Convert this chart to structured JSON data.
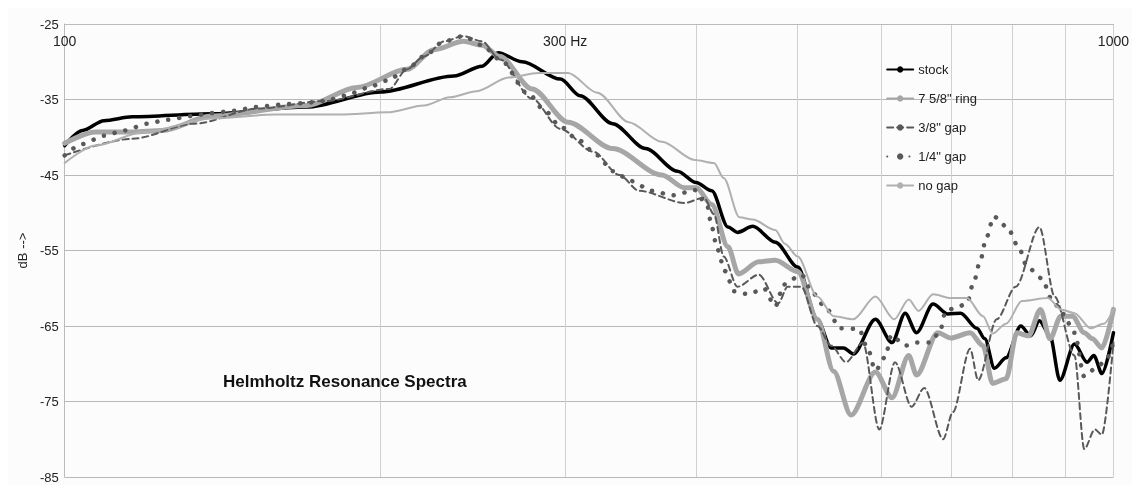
{
  "chart_data": {
    "type": "line",
    "title": "Helmholtz Resonance Spectra",
    "ylabel": "dB -->",
    "log": "x",
    "xlim": [
      100,
      1000
    ],
    "ylim": [
      -85,
      -25
    ],
    "xticks": [
      100,
      {
        "value": 200,
        "label": null
      },
      {
        "value": 300,
        "label": "300 Hz"
      },
      {
        "value": 400,
        "label": null
      },
      {
        "value": 500,
        "label": null
      },
      {
        "value": 600,
        "label": null
      },
      {
        "value": 700,
        "label": null
      },
      {
        "value": 800,
        "label": null
      },
      {
        "value": 900,
        "label": null
      },
      1000
    ],
    "yticks": [
      -85,
      -75,
      -65,
      -55,
      -45,
      -35,
      -25
    ],
    "grid": true,
    "legend": "top right",
    "marker": "none",
    "series": [
      {
        "name": "stock",
        "color": "#000000",
        "line_style": "solid",
        "x": [
          100,
          104,
          109,
          116,
          138,
          170,
          200,
          235,
          250,
          259,
          273,
          297,
          310,
          333,
          358,
          384,
          400,
          414,
          429,
          438,
          453,
          476,
          500,
          522,
          538,
          553,
          565,
          593,
          615,
          633,
          649,
          673,
          695,
          715,
          741,
          754,
          770,
          790,
          816,
          834,
          850,
          870,
          889,
          918,
          944,
          958,
          975,
          1000
        ],
        "values": [
          -41.1,
          -39.1,
          -37.8,
          -37.3,
          -36.9,
          -36.0,
          -34.0,
          -31.9,
          -30.6,
          -28.8,
          -30.0,
          -32.3,
          -34.5,
          -38.2,
          -41.5,
          -44.5,
          -46.0,
          -47.1,
          -51.9,
          -52.6,
          -51.8,
          -53.9,
          -57.2,
          -64.1,
          -67.9,
          -67.9,
          -68.7,
          -64.1,
          -67.2,
          -63.3,
          -65.9,
          -62.1,
          -63.4,
          -63.3,
          -65.3,
          -66.7,
          -70.6,
          -69.2,
          -65.0,
          -66.3,
          -64.3,
          -66.3,
          -72.2,
          -67.4,
          -69.8,
          -68.9,
          -71.3,
          -65.9
        ]
      },
      {
        "name": "7 5/8\" ring",
        "color": "#a6a6a6",
        "line_style": "solid",
        "x": [
          100,
          107,
          116,
          124,
          138,
          170,
          190,
          212,
          225,
          240,
          250,
          260,
          279,
          302,
          333,
          371,
          390,
          400,
          414,
          429,
          439,
          459,
          476,
          500,
          522,
          541,
          562,
          593,
          615,
          638,
          649,
          680,
          700,
          730,
          751,
          767,
          790,
          809,
          830,
          852,
          870,
          891,
          914,
          938,
          955,
          975,
          1000
        ],
        "values": [
          -40.8,
          -39.3,
          -39.3,
          -39.1,
          -37.2,
          -35.8,
          -33.4,
          -31.0,
          -28.4,
          -27.3,
          -27.8,
          -29.3,
          -33.6,
          -38.0,
          -41.5,
          -45.0,
          -46.7,
          -46.7,
          -48.9,
          -54.5,
          -58.1,
          -56.5,
          -56.3,
          -57.8,
          -64.1,
          -71.0,
          -76.8,
          -71.1,
          -74.5,
          -68.9,
          -71.5,
          -65.9,
          -66.6,
          -65.9,
          -67.6,
          -72.6,
          -72.0,
          -65.9,
          -66.3,
          -62.8,
          -66.7,
          -63.7,
          -63.7,
          -65.9,
          -66.7,
          -67.9,
          -62.8
        ]
      },
      {
        "name": "3/8\" gap",
        "color": "#595959",
        "line_style": "dashed",
        "x": [
          100,
          116,
          133,
          153,
          177,
          204,
          212,
          220,
          230,
          240,
          250,
          260,
          279,
          297,
          319,
          338,
          353,
          390,
          407,
          416,
          425,
          438,
          459,
          479,
          489,
          504,
          522,
          538,
          556,
          577,
          598,
          619,
          642,
          660,
          688,
          703,
          730,
          743,
          774,
          807,
          850,
          879,
          918,
          938,
          960,
          975,
          1000
        ],
        "values": [
          -42.4,
          -40.2,
          -38.2,
          -36.2,
          -35.2,
          -33.6,
          -31.0,
          -29.3,
          -27.3,
          -26.6,
          -27.3,
          -29.7,
          -34.9,
          -38.9,
          -41.9,
          -45.0,
          -47.1,
          -48.7,
          -48.0,
          -50.2,
          -55.8,
          -59.8,
          -58.2,
          -62.0,
          -59.8,
          -59.8,
          -65.0,
          -67.6,
          -69.8,
          -67.2,
          -78.7,
          -69.8,
          -75.7,
          -73.2,
          -80.0,
          -76.4,
          -68.0,
          -72.2,
          -64.1,
          -59.8,
          -51.9,
          -61.1,
          -68.9,
          -81.3,
          -78.7,
          -79.4,
          -67.2
        ]
      },
      {
        "name": "1/4\" gap",
        "color": "#595959",
        "line_style": "dotted",
        "x": [
          100,
          104,
          109,
          114,
          120,
          125,
          132,
          138,
          145,
          152,
          160,
          168,
          177,
          185,
          194,
          203,
          212,
          220,
          230,
          240,
          250,
          260,
          277,
          287,
          297,
          309,
          322,
          333,
          347,
          363,
          380,
          399,
          410,
          414,
          419,
          426,
          435,
          449,
          464,
          476,
          485,
          504,
          517,
          533,
          549,
          572,
          583,
          593,
          606,
          614,
          633,
          648,
          669,
          683,
          692,
          710,
          725,
          736,
          747,
          756,
          769,
          792,
          811,
          828,
          855,
          872,
          895,
          918,
          938,
          962,
          983,
          1000
        ],
        "values": [
          -42.4,
          -40.9,
          -39.8,
          -39.1,
          -38.2,
          -37.7,
          -37.2,
          -36.8,
          -36.5,
          -36.0,
          -35.7,
          -35.5,
          -35.2,
          -34.5,
          -33.5,
          -32.5,
          -31.0,
          -29.3,
          -27.3,
          -26.6,
          -27.8,
          -29.7,
          -34.3,
          -36.5,
          -38.6,
          -40.4,
          -42.4,
          -44.5,
          -45.8,
          -47.1,
          -47.7,
          -47.0,
          -49.1,
          -51.9,
          -54.8,
          -57.7,
          -60.4,
          -60.8,
          -60.0,
          -62.4,
          -59.5,
          -58.2,
          -60.7,
          -62.8,
          -65.3,
          -65.4,
          -68.0,
          -70.9,
          -69.1,
          -66.2,
          -67.6,
          -67.2,
          -67.2,
          -65.8,
          -63.0,
          -62.5,
          -62.0,
          -59.1,
          -56.2,
          -53.4,
          -50.5,
          -51.9,
          -54.4,
          -57.2,
          -58.7,
          -61.3,
          -63.4,
          -65.9,
          -71.7,
          -70.6,
          -69.6,
          -67.2
        ]
      },
      {
        "name": "no gap",
        "color": "#b0b0b0",
        "line_style": "solid",
        "x": [
          100,
          107,
          119,
          138,
          159,
          183,
          203,
          220,
          233,
          247,
          265,
          283,
          302,
          322,
          345,
          371,
          399,
          416,
          425,
          440,
          453,
          476,
          486,
          500,
          522,
          541,
          565,
          593,
          618,
          638,
          652,
          673,
          700,
          725,
          751,
          767,
          790,
          818,
          866,
          891,
          918,
          951,
          979,
          1000
        ],
        "values": [
          -43.4,
          -41.1,
          -39.3,
          -37.5,
          -37.0,
          -37.0,
          -36.7,
          -35.8,
          -34.7,
          -33.9,
          -32.1,
          -31.5,
          -31.5,
          -34.1,
          -38.0,
          -40.6,
          -43.0,
          -43.4,
          -45.4,
          -50.6,
          -50.9,
          -52.3,
          -54.1,
          -55.8,
          -61.1,
          -63.7,
          -64.1,
          -61.1,
          -64.1,
          -61.5,
          -63.0,
          -60.8,
          -61.3,
          -61.3,
          -63.7,
          -66.0,
          -64.7,
          -61.7,
          -61.3,
          -62.8,
          -63.3,
          -65.3,
          -64.7,
          -62.8
        ]
      }
    ]
  }
}
